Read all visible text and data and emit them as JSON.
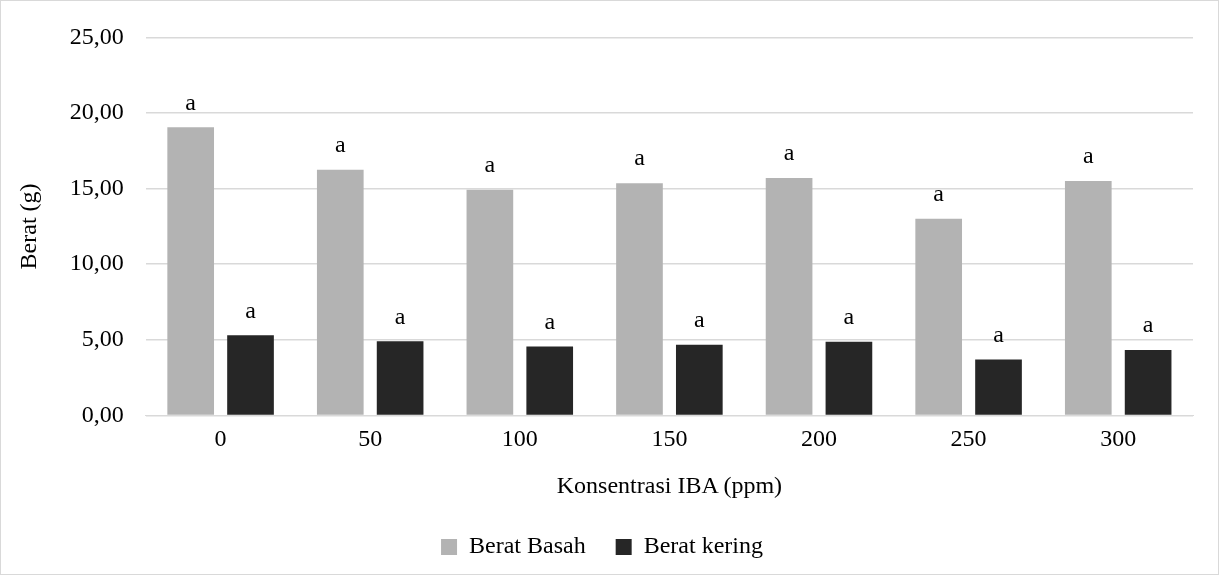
{
  "chart_data": {
    "type": "bar",
    "xlabel": "Konsentrasi IBA (ppm)",
    "ylabel": "Berat (g)",
    "categories": [
      "0",
      "50",
      "100",
      "150",
      "200",
      "250",
      "300"
    ],
    "series": [
      {
        "name": "Berat Basah",
        "color": "#b3b3b3",
        "values": [
          19.05,
          16.25,
          14.93,
          15.36,
          15.7,
          13.0,
          15.5
        ],
        "value_labels": [
          "a",
          "a",
          "a",
          "a",
          "a",
          "a",
          "a"
        ]
      },
      {
        "name": "Berat kering",
        "color": "#262626",
        "values": [
          5.3,
          4.9,
          4.56,
          4.67,
          4.87,
          3.7,
          4.33
        ],
        "value_labels": [
          "a",
          "a",
          "a",
          "a",
          "a",
          "a",
          "a"
        ]
      }
    ],
    "ylim": [
      0,
      25
    ],
    "yticks": [
      {
        "value": 0,
        "label": "0,00"
      },
      {
        "value": 5,
        "label": "5,00"
      },
      {
        "value": 10,
        "label": "10,00"
      },
      {
        "value": 15,
        "label": "15,00"
      },
      {
        "value": 20,
        "label": "20,00"
      },
      {
        "value": 25,
        "label": "25,00"
      }
    ],
    "grid": "y",
    "legend": "bottom"
  }
}
